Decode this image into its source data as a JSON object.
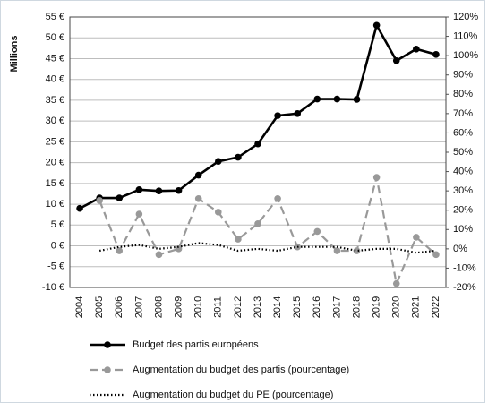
{
  "chart_data": {
    "type": "line",
    "ylabel": "Millions",
    "categories": [
      "2004",
      "2005",
      "2006",
      "2007",
      "2008",
      "2009",
      "2010",
      "2011",
      "2012",
      "2013",
      "2014",
      "2015",
      "2016",
      "2017",
      "2018",
      "2019",
      "2020",
      "2021",
      "2022"
    ],
    "ylim": [
      -10,
      55
    ],
    "yticks": [
      {
        "value": -10,
        "label": "-10 €"
      },
      {
        "value": -5,
        "label": "-5 €"
      },
      {
        "value": 0,
        "label": "0 €"
      },
      {
        "value": 5,
        "label": "5 €"
      },
      {
        "value": 10,
        "label": "10 €"
      },
      {
        "value": 15,
        "label": "15 €"
      },
      {
        "value": 20,
        "label": "20 €"
      },
      {
        "value": 25,
        "label": "25 €"
      },
      {
        "value": 30,
        "label": "30 €"
      },
      {
        "value": 35,
        "label": "35 €"
      },
      {
        "value": 40,
        "label": "40 €"
      },
      {
        "value": 45,
        "label": "45 €"
      },
      {
        "value": 50,
        "label": "50 €"
      },
      {
        "value": 55,
        "label": "55 €"
      }
    ],
    "y2lim": [
      -20,
      120
    ],
    "y2ticks": [
      {
        "value": -20,
        "label": "-20%"
      },
      {
        "value": -10,
        "label": "-10%"
      },
      {
        "value": 0,
        "label": "0%"
      },
      {
        "value": 10,
        "label": "10%"
      },
      {
        "value": 20,
        "label": "20%"
      },
      {
        "value": 30,
        "label": "30%"
      },
      {
        "value": 40,
        "label": "40%"
      },
      {
        "value": 50,
        "label": "50%"
      },
      {
        "value": 60,
        "label": "60%"
      },
      {
        "value": 70,
        "label": "70%"
      },
      {
        "value": 80,
        "label": "80%"
      },
      {
        "value": 90,
        "label": "90%"
      },
      {
        "value": 100,
        "label": "100%"
      },
      {
        "value": 110,
        "label": "110%"
      },
      {
        "value": 120,
        "label": "120%"
      }
    ],
    "grid": true,
    "legend": "bottom",
    "series": [
      {
        "name": "Budget des partis européens",
        "color": "#000000",
        "style": "solid",
        "markers": true,
        "values": [
          9,
          11.5,
          11.5,
          13.5,
          13.2,
          13.3,
          17,
          20.3,
          21.3,
          24.5,
          31.3,
          31.8,
          35.3,
          35.3,
          35.2,
          53,
          44.5,
          47.3,
          46
        ]
      },
      {
        "name": "Augmentation du budget des partis (pourcentage)",
        "color": "#999999",
        "style": "dashed",
        "markers": true,
        "axis": "y2",
        "values": [
          null,
          25,
          -1,
          18,
          -3,
          0,
          26,
          19,
          5,
          13,
          26,
          1,
          9,
          -1,
          -1,
          37,
          -18,
          6,
          -3
        ]
      },
      {
        "name": "Augmentation du budget du PE (pourcentage)",
        "color": "#000000",
        "style": "dotted",
        "markers": false,
        "axis": "y2",
        "values": [
          null,
          -1,
          1,
          2,
          0,
          1,
          3,
          2,
          -1,
          0,
          -1,
          1,
          1,
          1,
          -1,
          0,
          0,
          -2,
          -1
        ]
      }
    ]
  }
}
